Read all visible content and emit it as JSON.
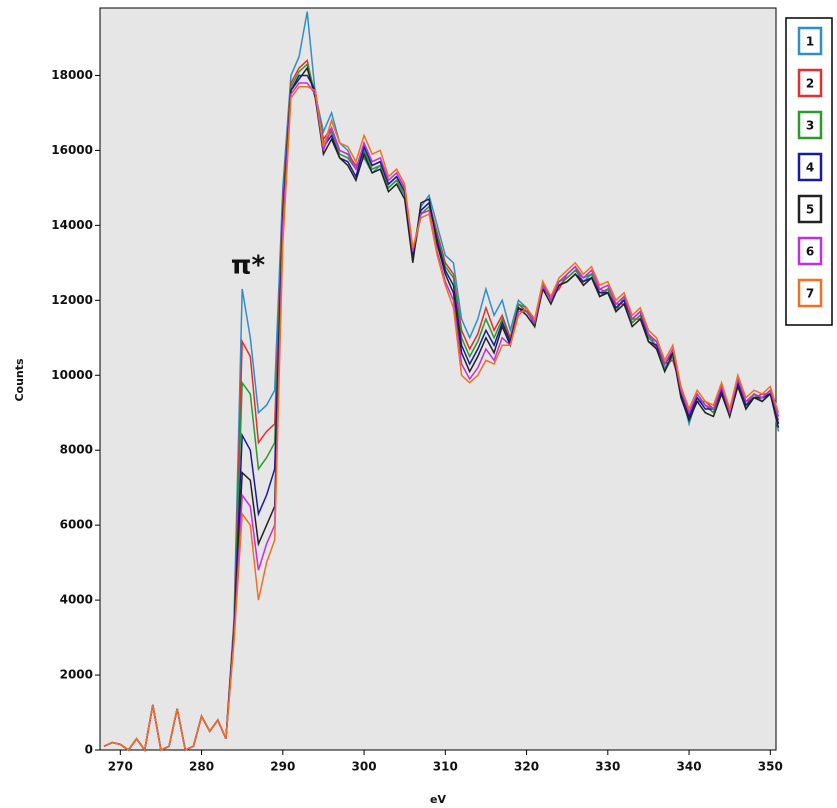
{
  "chart_data": {
    "type": "line",
    "xlabel": "eV",
    "ylabel": "Counts",
    "annotation": "π*",
    "xlim": [
      267.5,
      350.7
    ],
    "ylim": [
      0,
      19800
    ],
    "xticks": [
      270,
      280,
      290,
      300,
      310,
      320,
      330,
      340,
      350
    ],
    "yticks": [
      0,
      2000,
      4000,
      6000,
      8000,
      10000,
      12000,
      14000,
      16000,
      18000
    ],
    "x": [
      268,
      269,
      270,
      271,
      272,
      273,
      274,
      275,
      276,
      277,
      278,
      279,
      280,
      281,
      282,
      283,
      284,
      285,
      286,
      287,
      288,
      289,
      290,
      291,
      292,
      293,
      294,
      295,
      296,
      297,
      298,
      299,
      300,
      301,
      302,
      303,
      304,
      305,
      306,
      307,
      308,
      309,
      310,
      311,
      312,
      313,
      314,
      315,
      316,
      317,
      318,
      319,
      320,
      321,
      322,
      323,
      324,
      325,
      326,
      327,
      328,
      329,
      330,
      331,
      332,
      333,
      334,
      335,
      336,
      337,
      338,
      339,
      340,
      341,
      342,
      343,
      344,
      345,
      346,
      347,
      348,
      349,
      350,
      351
    ],
    "series": [
      {
        "name": "1",
        "color": "#2f8fc8",
        "values": [
          100,
          200,
          150,
          0,
          300,
          0,
          1200,
          0,
          100,
          1100,
          0,
          100,
          900,
          500,
          800,
          300,
          3500,
          12300,
          11000,
          9000,
          9200,
          9600,
          15000,
          18000,
          18500,
          19700,
          17500,
          16500,
          17000,
          16200,
          16000,
          15500,
          15800,
          15400,
          15600,
          15000,
          15200,
          14800,
          13200,
          14500,
          14800,
          14000,
          13200,
          13000,
          11500,
          11000,
          11500,
          12300,
          11600,
          12000,
          11200,
          12000,
          11800,
          11400,
          12500,
          12000,
          12400,
          12600,
          12800,
          12500,
          12700,
          12200,
          12300,
          11800,
          12000,
          11400,
          11600,
          11000,
          10800,
          10200,
          10500,
          9600,
          8700,
          9400,
          9200,
          9000,
          9600,
          9000,
          9800,
          9200,
          9500,
          9400,
          9600,
          8500
        ]
      },
      {
        "name": "2",
        "color": "#e03030",
        "values": [
          100,
          200,
          150,
          0,
          300,
          0,
          1200,
          0,
          100,
          1100,
          0,
          100,
          900,
          500,
          800,
          300,
          3400,
          10900,
          10500,
          8200,
          8500,
          8700,
          14700,
          17800,
          18200,
          18400,
          17400,
          16300,
          16600,
          16000,
          15900,
          15600,
          15900,
          15600,
          15700,
          15100,
          15300,
          14900,
          13300,
          14400,
          14600,
          13800,
          13000,
          12700,
          11200,
          10700,
          11100,
          11800,
          11200,
          11600,
          11000,
          11900,
          11700,
          11500,
          12400,
          12100,
          12300,
          12700,
          12900,
          12400,
          12600,
          12300,
          12200,
          11900,
          11900,
          11500,
          11500,
          11100,
          10700,
          10300,
          10400,
          9700,
          8900,
          9300,
          9300,
          9100,
          9500,
          9100,
          9700,
          9300,
          9400,
          9500,
          9500,
          8800
        ]
      },
      {
        "name": "3",
        "color": "#2a9a2a",
        "values": [
          100,
          200,
          150,
          0,
          300,
          0,
          1200,
          0,
          100,
          1100,
          0,
          100,
          900,
          500,
          800,
          300,
          3300,
          9800,
          9500,
          7500,
          7800,
          8200,
          14500,
          17700,
          18100,
          18300,
          17500,
          16200,
          16500,
          15900,
          15800,
          15500,
          16000,
          15500,
          15600,
          15000,
          15200,
          14800,
          13100,
          14300,
          14500,
          13700,
          12900,
          12600,
          11000,
          10500,
          10900,
          11500,
          11000,
          11500,
          10900,
          11900,
          11800,
          11300,
          12400,
          12000,
          12500,
          12600,
          12800,
          12600,
          12700,
          12100,
          12300,
          11700,
          12100,
          11400,
          11600,
          11000,
          10900,
          10100,
          10500,
          9700,
          8800,
          9500,
          9200,
          9000,
          9700,
          9000,
          9800,
          9100,
          9500,
          9300,
          9600,
          8700
        ]
      },
      {
        "name": "4",
        "color": "#1a1aa0",
        "values": [
          100,
          200,
          150,
          0,
          300,
          0,
          1200,
          0,
          100,
          1100,
          0,
          100,
          900,
          500,
          800,
          300,
          3200,
          8400,
          8000,
          6300,
          6800,
          7500,
          14300,
          17600,
          18000,
          18000,
          17600,
          16100,
          16400,
          15800,
          15700,
          15300,
          16100,
          15600,
          15700,
          15100,
          15300,
          14900,
          13200,
          14400,
          14600,
          13600,
          12800,
          12400,
          10800,
          10300,
          10700,
          11200,
          10800,
          11400,
          10900,
          11800,
          11700,
          11400,
          12300,
          12100,
          12400,
          12500,
          12700,
          12500,
          12600,
          12200,
          12200,
          11800,
          12000,
          11500,
          11700,
          10900,
          10800,
          10300,
          10600,
          9500,
          8900,
          9400,
          9100,
          9100,
          9600,
          8900,
          9800,
          9200,
          9400,
          9400,
          9500,
          8700
        ]
      },
      {
        "name": "5",
        "color": "#222222",
        "values": [
          100,
          200,
          150,
          0,
          300,
          0,
          1200,
          0,
          100,
          1100,
          0,
          100,
          900,
          500,
          800,
          300,
          3100,
          7400,
          7200,
          5500,
          6000,
          6500,
          14200,
          17600,
          17900,
          18200,
          17400,
          15900,
          16300,
          15800,
          15600,
          15200,
          15900,
          15400,
          15500,
          14900,
          15100,
          14700,
          13000,
          14600,
          14700,
          13500,
          12700,
          12200,
          10600,
          10100,
          10500,
          11000,
          10600,
          11300,
          10800,
          11800,
          11600,
          11300,
          12300,
          11900,
          12400,
          12500,
          12700,
          12400,
          12600,
          12100,
          12200,
          11700,
          11900,
          11300,
          11500,
          10900,
          10700,
          10100,
          10600,
          9400,
          8800,
          9300,
          9000,
          8900,
          9500,
          8900,
          9700,
          9100,
          9400,
          9300,
          9500,
          8600
        ]
      },
      {
        "name": "6",
        "color": "#c030e0",
        "values": [
          100,
          200,
          150,
          0,
          300,
          0,
          1200,
          0,
          100,
          1100,
          0,
          100,
          900,
          500,
          800,
          300,
          3000,
          6800,
          6500,
          4800,
          5500,
          6000,
          14000,
          17500,
          17800,
          17800,
          17500,
          16000,
          16600,
          16000,
          15900,
          15500,
          16200,
          15700,
          15800,
          15200,
          15400,
          15000,
          13300,
          14300,
          14400,
          13300,
          12500,
          12000,
          10300,
          9900,
          10200,
          10700,
          10400,
          11000,
          10800,
          11700,
          11700,
          11400,
          12400,
          12000,
          12500,
          12700,
          12900,
          12600,
          12800,
          12300,
          12400,
          11900,
          12100,
          11500,
          11700,
          11100,
          10900,
          10300,
          10700,
          9600,
          9000,
          9500,
          9200,
          9100,
          9700,
          9000,
          9900,
          9300,
          9500,
          9400,
          9600,
          8900
        ]
      },
      {
        "name": "7",
        "color": "#f07020",
        "values": [
          100,
          200,
          150,
          0,
          300,
          0,
          1200,
          0,
          100,
          1100,
          0,
          100,
          900,
          500,
          800,
          300,
          2900,
          6300,
          6000,
          4000,
          5000,
          5600,
          13500,
          17400,
          17700,
          17700,
          17600,
          16100,
          16800,
          16200,
          16100,
          15700,
          16400,
          15900,
          16000,
          15300,
          15500,
          15100,
          13400,
          14200,
          14300,
          13200,
          12400,
          11800,
          10000,
          9800,
          10000,
          10400,
          10300,
          10800,
          10800,
          11600,
          11800,
          11500,
          12500,
          12100,
          12600,
          12800,
          13000,
          12700,
          12900,
          12400,
          12500,
          12000,
          12200,
          11600,
          11800,
          11200,
          11000,
          10400,
          10800,
          9700,
          9100,
          9600,
          9300,
          9200,
          9800,
          9100,
          10000,
          9400,
          9600,
          9500,
          9700,
          9000
        ]
      }
    ]
  }
}
